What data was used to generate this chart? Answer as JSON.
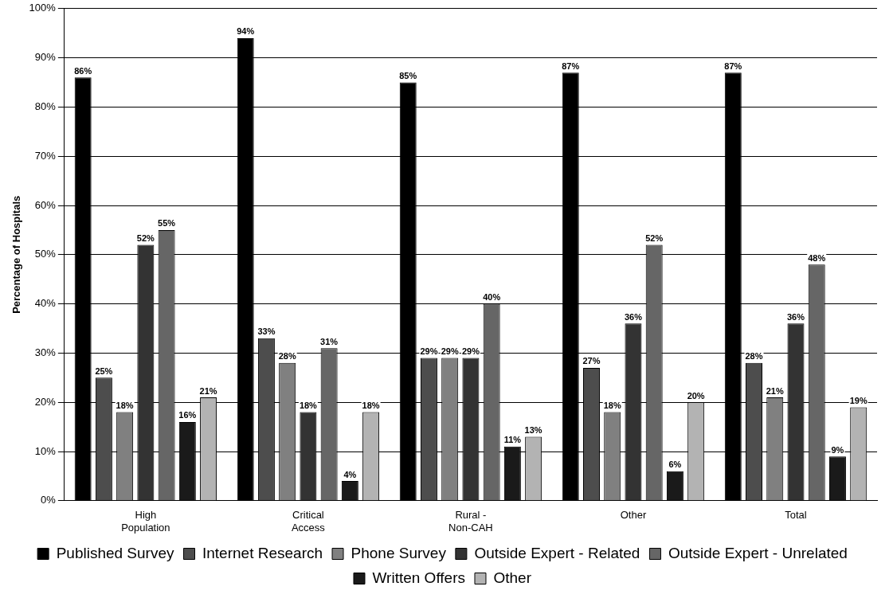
{
  "chart_data": {
    "type": "bar",
    "ylabel": "Percentage of Hospitals",
    "categories": [
      "High Population",
      "Critical Access",
      "Rural - Non-CAH",
      "Other",
      "Total"
    ],
    "series": [
      {
        "name": "Published Survey",
        "color": "#000000",
        "values": [
          86,
          94,
          85,
          87,
          87
        ],
        "value_labels": [
          "86%",
          "94%",
          "85%",
          "87%",
          "87%"
        ]
      },
      {
        "name": "Internet Research",
        "color": "#4d4d4d",
        "values": [
          25,
          33,
          29,
          27,
          28
        ],
        "value_labels": [
          "25%",
          "33%",
          "29%",
          "27%",
          "28%"
        ]
      },
      {
        "name": "Phone Survey",
        "color": "#808080",
        "values": [
          18,
          28,
          29,
          18,
          21
        ],
        "value_labels": [
          "18%",
          "28%",
          "29%",
          "18%",
          "21%"
        ]
      },
      {
        "name": "Outside Expert - Related",
        "color": "#333333",
        "values": [
          52,
          18,
          29,
          36,
          36
        ],
        "value_labels": [
          "52%",
          "18%",
          "29%",
          "36%",
          "36%"
        ]
      },
      {
        "name": "Outside Expert - Unrelated",
        "color": "#666666",
        "values": [
          55,
          31,
          40,
          52,
          48
        ],
        "value_labels": [
          "55%",
          "31%",
          "40%",
          "52%",
          "48%"
        ]
      },
      {
        "name": "Written Offers",
        "color": "#1a1a1a",
        "values": [
          16,
          4,
          11,
          6,
          9
        ],
        "value_labels": [
          "16%",
          "4%",
          "11%",
          "6%",
          "9%"
        ]
      },
      {
        "name": "Other",
        "color": "#b3b3b3",
        "values": [
          21,
          18,
          13,
          20,
          19
        ],
        "value_labels": [
          "21%",
          "18%",
          "13%",
          "20%",
          "19%"
        ]
      }
    ],
    "ylim": [
      0,
      100
    ],
    "yticks": [
      {
        "value": 0,
        "label": "0%"
      },
      {
        "value": 10,
        "label": "10%"
      },
      {
        "value": 20,
        "label": "20%"
      },
      {
        "value": 30,
        "label": "30%"
      },
      {
        "value": 40,
        "label": "40%"
      },
      {
        "value": 50,
        "label": "50%"
      },
      {
        "value": 60,
        "label": "60%"
      },
      {
        "value": 70,
        "label": "70%"
      },
      {
        "value": 80,
        "label": "80%"
      },
      {
        "value": 90,
        "label": "90%"
      },
      {
        "value": 100,
        "label": "100%"
      }
    ],
    "grid": "y",
    "legend": "bottom"
  }
}
